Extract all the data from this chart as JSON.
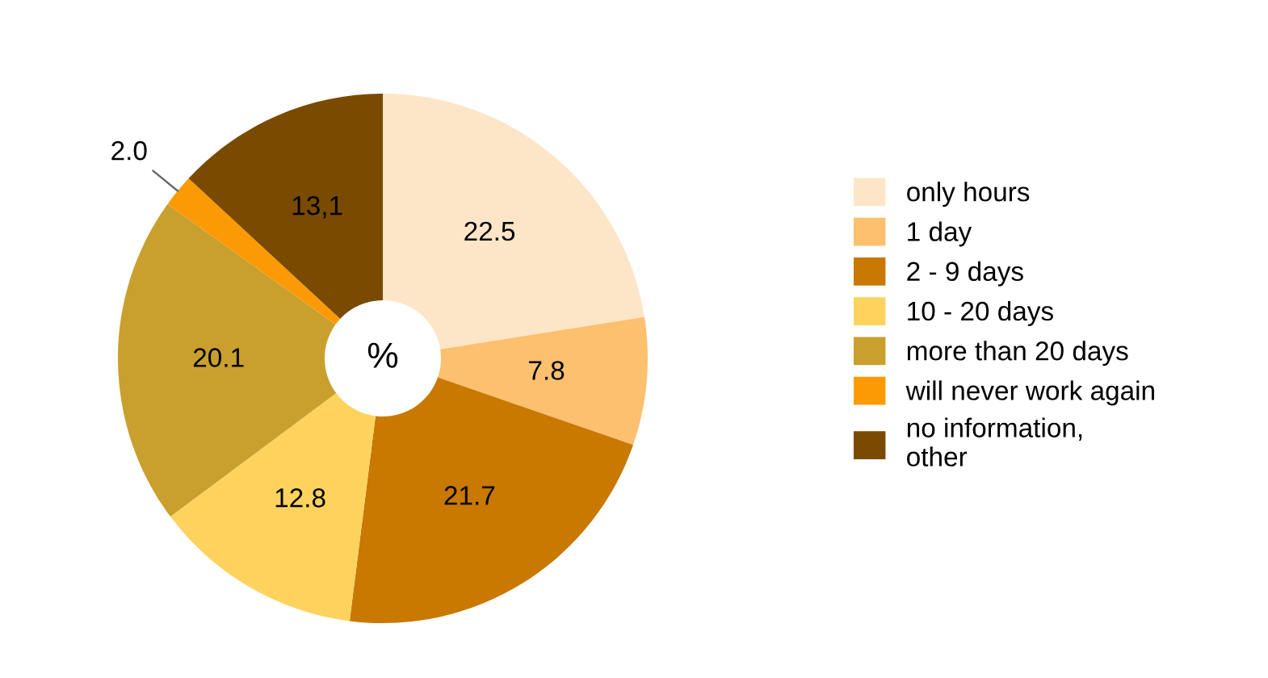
{
  "chart_data": {
    "type": "donut",
    "categories": [
      "only hours",
      "1 day",
      "2 - 9 days",
      "10 - 20 days",
      "more than 20 days",
      "will never work again",
      "no information,\nother"
    ],
    "values": [
      22.5,
      7.8,
      21.7,
      12.8,
      20.1,
      2.0,
      13.1
    ],
    "value_labels": [
      "22.5",
      "7.8",
      "21.7",
      "12.8",
      "20.1",
      "2.0",
      "13,1"
    ],
    "colors": [
      "#fde6c8",
      "#fcc06e",
      "#c97800",
      "#fdd35e",
      "#c9a02e",
      "#fb9a04",
      "#7a4a00"
    ],
    "annotations": [
      "%"
    ],
    "legend": "right"
  }
}
